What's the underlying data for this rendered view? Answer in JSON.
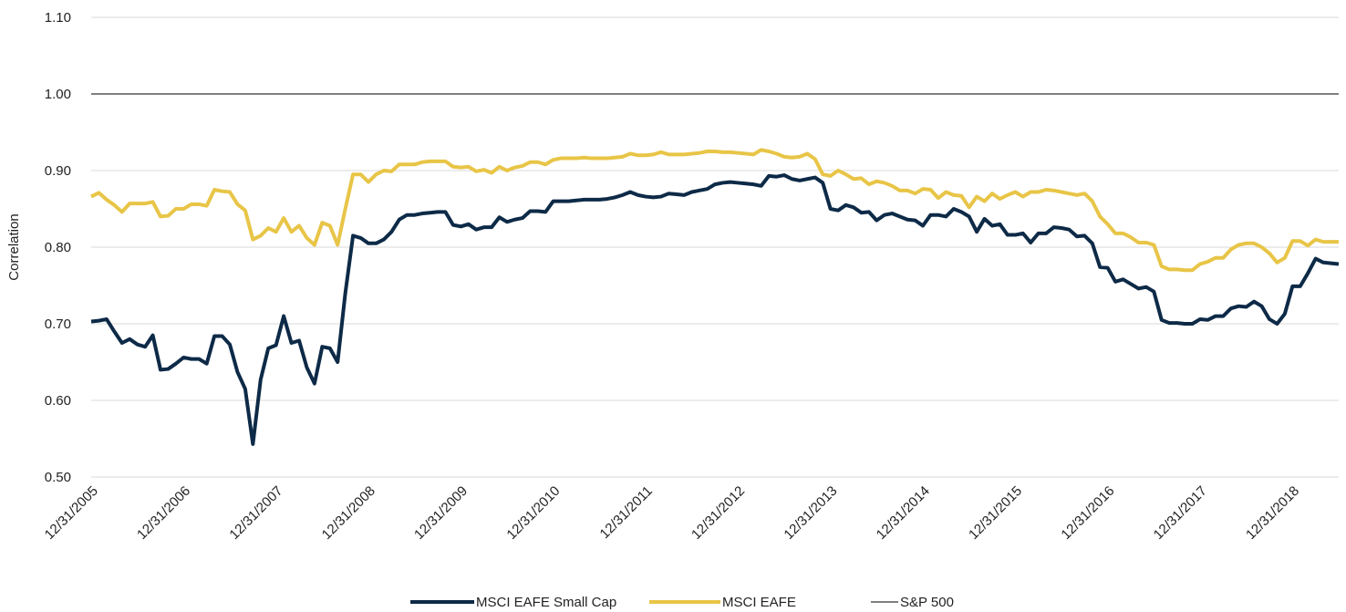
{
  "chart_data": {
    "type": "line",
    "y_label": "Correlation",
    "ylim": [
      0.5,
      1.1
    ],
    "yticks": [
      {
        "value": 0.5,
        "label": "0.50"
      },
      {
        "value": 0.6,
        "label": "0.60"
      },
      {
        "value": 0.7,
        "label": "0.70"
      },
      {
        "value": 0.8,
        "label": "0.80"
      },
      {
        "value": 0.9,
        "label": "0.90"
      },
      {
        "value": 1.0,
        "label": "1.00"
      },
      {
        "value": 1.1,
        "label": "1.10"
      }
    ],
    "grid": true,
    "legend": "bottom",
    "categories": [
      "12/31/2005",
      null,
      null,
      null,
      null,
      null,
      null,
      null,
      null,
      null,
      null,
      null,
      "12/31/2006",
      null,
      null,
      null,
      null,
      null,
      null,
      null,
      null,
      null,
      null,
      null,
      "12/31/2007",
      null,
      null,
      null,
      null,
      null,
      null,
      null,
      null,
      null,
      null,
      null,
      "12/31/2008",
      null,
      null,
      null,
      null,
      null,
      null,
      null,
      null,
      null,
      null,
      null,
      "12/31/2009",
      null,
      null,
      null,
      null,
      null,
      null,
      null,
      null,
      null,
      null,
      null,
      "12/31/2010",
      null,
      null,
      null,
      null,
      null,
      null,
      null,
      null,
      null,
      null,
      null,
      "12/31/2011",
      null,
      null,
      null,
      null,
      null,
      null,
      null,
      null,
      null,
      null,
      null,
      "12/31/2012",
      null,
      null,
      null,
      null,
      null,
      null,
      null,
      null,
      null,
      null,
      null,
      "12/31/2013",
      null,
      null,
      null,
      null,
      null,
      null,
      null,
      null,
      null,
      null,
      null,
      "12/31/2014",
      null,
      null,
      null,
      null,
      null,
      null,
      null,
      null,
      null,
      null,
      null,
      "12/31/2015",
      null,
      null,
      null,
      null,
      null,
      null,
      null,
      null,
      null,
      null,
      null,
      "12/31/2016",
      null,
      null,
      null,
      null,
      null,
      null,
      null,
      null,
      null,
      null,
      null,
      "12/31/2017",
      null,
      null,
      null,
      null,
      null,
      null,
      null,
      null,
      null,
      null,
      null,
      "12/31/2018",
      null,
      null,
      null,
      null,
      null,
      null
    ],
    "series": [
      {
        "name": "MSCI EAFE Small Cap",
        "color": "#0d2a47",
        "width": 4,
        "values": [
          0.703,
          0.704,
          0.706,
          0.69,
          0.675,
          0.68,
          0.673,
          0.67,
          0.685,
          0.64,
          0.641,
          0.648,
          0.656,
          0.654,
          0.654,
          0.648,
          0.684,
          0.684,
          0.673,
          0.637,
          0.615,
          0.543,
          0.627,
          0.668,
          0.672,
          0.71,
          0.675,
          0.678,
          0.643,
          0.622,
          0.67,
          0.668,
          0.65,
          0.74,
          0.815,
          0.812,
          0.805,
          0.805,
          0.81,
          0.82,
          0.836,
          0.842,
          0.842,
          0.844,
          0.845,
          0.846,
          0.846,
          0.829,
          0.827,
          0.83,
          0.823,
          0.826,
          0.826,
          0.839,
          0.833,
          0.836,
          0.838,
          0.847,
          0.847,
          0.846,
          0.86,
          0.86,
          0.86,
          0.861,
          0.862,
          0.862,
          0.862,
          0.863,
          0.865,
          0.868,
          0.872,
          0.868,
          0.866,
          0.865,
          0.866,
          0.87,
          0.869,
          0.868,
          0.872,
          0.874,
          0.876,
          0.882,
          0.884,
          0.885,
          0.884,
          0.883,
          0.882,
          0.88,
          0.893,
          0.892,
          0.894,
          0.889,
          0.887,
          0.889,
          0.891,
          0.884,
          0.85,
          0.848,
          0.855,
          0.852,
          0.845,
          0.846,
          0.835,
          0.842,
          0.844,
          0.84,
          0.836,
          0.835,
          0.828,
          0.842,
          0.842,
          0.84,
          0.85,
          0.846,
          0.84,
          0.82,
          0.837,
          0.828,
          0.83,
          0.816,
          0.816,
          0.818,
          0.806,
          0.818,
          0.818,
          0.826,
          0.825,
          0.823,
          0.814,
          0.815,
          0.805,
          0.774,
          0.773,
          0.755,
          0.758,
          0.752,
          0.746,
          0.748,
          0.742,
          0.705,
          0.701,
          0.701,
          0.7,
          0.7,
          0.706,
          0.705,
          0.71,
          0.71,
          0.72,
          0.723,
          0.722,
          0.729,
          0.723,
          0.706,
          0.7,
          0.713,
          0.749,
          0.749,
          0.766,
          0.785,
          0.78,
          0.779,
          0.778
        ]
      },
      {
        "name": "MSCI EAFE",
        "color": "#e8c547",
        "width": 4,
        "values": [
          0.866,
          0.871,
          0.862,
          0.855,
          0.846,
          0.857,
          0.857,
          0.857,
          0.859,
          0.84,
          0.841,
          0.85,
          0.85,
          0.856,
          0.856,
          0.854,
          0.875,
          0.873,
          0.872,
          0.856,
          0.848,
          0.81,
          0.815,
          0.825,
          0.82,
          0.838,
          0.82,
          0.828,
          0.812,
          0.803,
          0.832,
          0.828,
          0.803,
          0.85,
          0.895,
          0.895,
          0.885,
          0.895,
          0.9,
          0.899,
          0.908,
          0.908,
          0.908,
          0.911,
          0.912,
          0.912,
          0.912,
          0.905,
          0.904,
          0.905,
          0.899,
          0.901,
          0.897,
          0.905,
          0.9,
          0.904,
          0.906,
          0.911,
          0.911,
          0.908,
          0.914,
          0.916,
          0.916,
          0.916,
          0.917,
          0.916,
          0.916,
          0.916,
          0.917,
          0.918,
          0.922,
          0.92,
          0.92,
          0.921,
          0.924,
          0.921,
          0.921,
          0.921,
          0.922,
          0.923,
          0.925,
          0.925,
          0.924,
          0.924,
          0.923,
          0.922,
          0.921,
          0.927,
          0.925,
          0.922,
          0.918,
          0.917,
          0.918,
          0.922,
          0.915,
          0.895,
          0.893,
          0.9,
          0.895,
          0.889,
          0.89,
          0.882,
          0.886,
          0.884,
          0.88,
          0.874,
          0.874,
          0.87,
          0.876,
          0.875,
          0.864,
          0.872,
          0.868,
          0.867,
          0.852,
          0.866,
          0.86,
          0.87,
          0.863,
          0.868,
          0.872,
          0.866,
          0.872,
          0.872,
          0.875,
          0.874,
          0.872,
          0.87,
          0.868,
          0.87,
          0.86,
          0.84,
          0.83,
          0.818,
          0.818,
          0.813,
          0.806,
          0.806,
          0.803,
          0.775,
          0.771,
          0.771,
          0.77,
          0.77,
          0.778,
          0.781,
          0.786,
          0.786,
          0.797,
          0.803,
          0.805,
          0.805,
          0.8,
          0.792,
          0.78,
          0.786,
          0.808,
          0.808,
          0.802,
          0.81,
          0.807,
          0.807,
          0.807
        ]
      },
      {
        "name": "S&P 500",
        "color": "#7f7f7f",
        "width": 2,
        "values": [
          1,
          1,
          1,
          1,
          1,
          1,
          1,
          1,
          1,
          1,
          1,
          1,
          1,
          1,
          1,
          1,
          1,
          1,
          1,
          1,
          1,
          1,
          1,
          1,
          1,
          1,
          1,
          1,
          1,
          1,
          1,
          1,
          1,
          1,
          1,
          1,
          1,
          1,
          1,
          1,
          1,
          1,
          1,
          1,
          1,
          1,
          1,
          1,
          1,
          1,
          1,
          1,
          1,
          1,
          1,
          1,
          1,
          1,
          1,
          1,
          1,
          1,
          1,
          1,
          1,
          1,
          1,
          1,
          1,
          1,
          1,
          1,
          1,
          1,
          1,
          1,
          1,
          1,
          1,
          1,
          1,
          1,
          1,
          1,
          1,
          1,
          1,
          1,
          1,
          1,
          1,
          1,
          1,
          1,
          1,
          1,
          1,
          1,
          1,
          1,
          1,
          1,
          1,
          1,
          1,
          1,
          1,
          1,
          1,
          1,
          1,
          1,
          1,
          1,
          1,
          1,
          1,
          1,
          1,
          1,
          1,
          1,
          1,
          1,
          1,
          1,
          1,
          1,
          1,
          1,
          1,
          1,
          1,
          1,
          1,
          1,
          1,
          1,
          1,
          1,
          1,
          1,
          1,
          1,
          1,
          1,
          1,
          1,
          1,
          1,
          1,
          1,
          1,
          1,
          1,
          1,
          1,
          1,
          1,
          1,
          1,
          1,
          1
        ]
      }
    ]
  }
}
